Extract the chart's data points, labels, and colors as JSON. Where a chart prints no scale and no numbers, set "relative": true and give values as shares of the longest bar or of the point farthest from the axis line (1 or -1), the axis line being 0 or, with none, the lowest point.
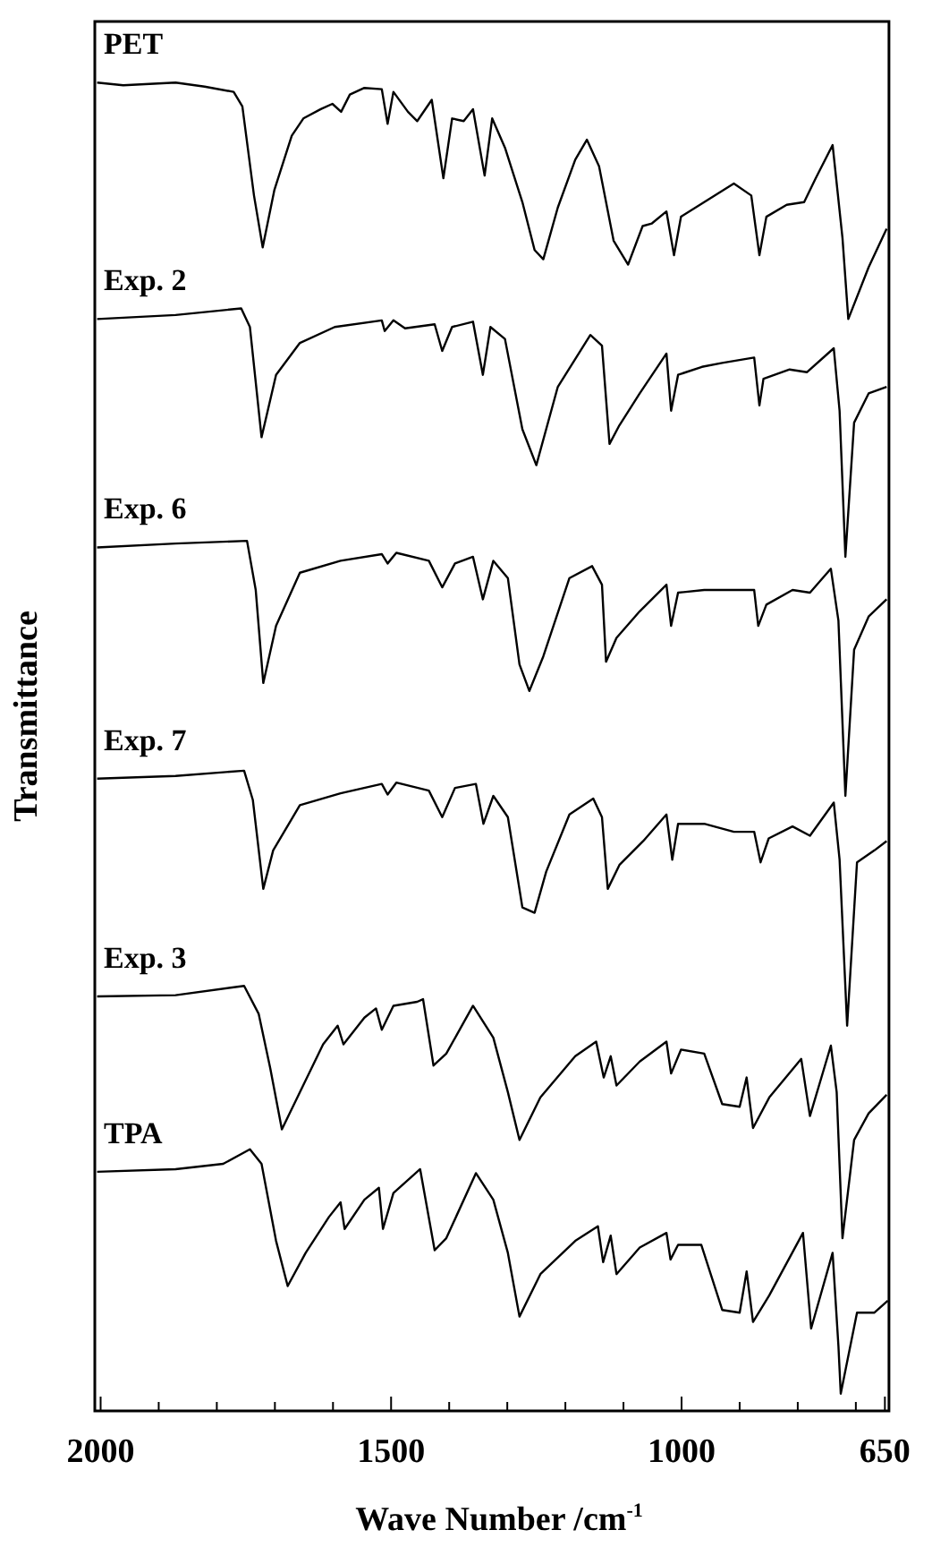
{
  "chart_data": {
    "type": "line",
    "xlabel": "Wave Number /cm$^{-1}$",
    "ylabel": "Transmittance",
    "relative": true,
    "tick_labels": "x",
    "marker": "none",
    "line_style": "solid",
    "xlim": [
      2010,
      643
    ],
    "xticks": [
      2000,
      {
        "value": 1900,
        "label": null
      },
      {
        "value": 1800,
        "label": null
      },
      {
        "value": 1700,
        "label": null
      },
      {
        "value": 1600,
        "label": null
      },
      1500,
      {
        "value": 1400,
        "label": null
      },
      {
        "value": 1300,
        "label": null
      },
      {
        "value": 1200,
        "label": null
      },
      {
        "value": 1100,
        "label": null
      },
      1000,
      {
        "value": 900,
        "label": null
      },
      {
        "value": 800,
        "label": null
      },
      {
        "value": 700,
        "label": null
      },
      650
    ],
    "series": [
      {
        "name": "PET",
        "color": "#000000",
        "x": [
          2006,
          1961,
          1871,
          1821,
          1771,
          1756,
          1736,
          1721,
          1701,
          1671,
          1651,
          1621,
          1601,
          1586,
          1571,
          1546,
          1516,
          1506,
          1496,
          1471,
          1455,
          1430,
          1410,
          1395,
          1375,
          1359,
          1339,
          1326,
          1304,
          1274,
          1253,
          1238,
          1213,
          1183,
          1163,
          1142,
          1117,
          1092,
          1067,
          1051,
          1026,
          1013,
          1001,
          961,
          910,
          880,
          866,
          854,
          819,
          789,
          769,
          740,
          723,
          713,
          678,
          647
        ],
        "values": [
          1.0,
          0.998,
          1.0,
          0.997,
          0.993,
          0.982,
          0.915,
          0.876,
          0.919,
          0.96,
          0.973,
          0.98,
          0.984,
          0.978,
          0.991,
          0.996,
          0.995,
          0.969,
          0.993,
          0.978,
          0.971,
          0.987,
          0.928,
          0.973,
          0.971,
          0.98,
          0.93,
          0.973,
          0.951,
          0.91,
          0.874,
          0.867,
          0.906,
          0.942,
          0.957,
          0.937,
          0.881,
          0.863,
          0.892,
          0.894,
          0.903,
          0.87,
          0.899,
          0.91,
          0.924,
          0.915,
          0.87,
          0.899,
          0.908,
          0.91,
          0.928,
          0.953,
          0.883,
          0.822,
          0.861,
          0.89
        ]
      },
      {
        "name": "Exp. 2",
        "color": "#000000",
        "x": [
          2006,
          1871,
          1758,
          1743,
          1723,
          1698,
          1657,
          1597,
          1516,
          1511,
          1496,
          1476,
          1425,
          1412,
          1395,
          1359,
          1342,
          1329,
          1304,
          1274,
          1250,
          1213,
          1157,
          1137,
          1124,
          1107,
          1072,
          1026,
          1018,
          1006,
          965,
          930,
          875,
          866,
          859,
          814,
          784,
          738,
          728,
          718,
          703,
          678,
          647
        ],
        "values": [
          0.822,
          0.825,
          0.83,
          0.816,
          0.733,
          0.78,
          0.804,
          0.816,
          0.821,
          0.813,
          0.821,
          0.815,
          0.818,
          0.798,
          0.816,
          0.82,
          0.78,
          0.816,
          0.807,
          0.739,
          0.712,
          0.771,
          0.81,
          0.802,
          0.728,
          0.742,
          0.766,
          0.796,
          0.753,
          0.78,
          0.786,
          0.789,
          0.793,
          0.757,
          0.777,
          0.784,
          0.782,
          0.8,
          0.753,
          0.643,
          0.744,
          0.766,
          0.771
        ]
      },
      {
        "name": "Exp. 6",
        "color": "#000000",
        "x": [
          2006,
          1871,
          1748,
          1733,
          1720,
          1698,
          1657,
          1587,
          1516,
          1506,
          1491,
          1435,
          1412,
          1390,
          1359,
          1342,
          1324,
          1299,
          1279,
          1262,
          1238,
          1193,
          1154,
          1137,
          1130,
          1112,
          1072,
          1026,
          1018,
          1006,
          961,
          910,
          875,
          868,
          854,
          809,
          779,
          743,
          730,
          718,
          703,
          678,
          647
        ],
        "values": [
          0.65,
          0.653,
          0.655,
          0.618,
          0.548,
          0.591,
          0.631,
          0.64,
          0.645,
          0.638,
          0.646,
          0.64,
          0.62,
          0.638,
          0.643,
          0.611,
          0.64,
          0.627,
          0.562,
          0.542,
          0.568,
          0.627,
          0.636,
          0.622,
          0.564,
          0.582,
          0.602,
          0.622,
          0.591,
          0.616,
          0.618,
          0.618,
          0.618,
          0.591,
          0.607,
          0.618,
          0.616,
          0.634,
          0.595,
          0.463,
          0.573,
          0.598,
          0.611
        ]
      },
      {
        "name": "Exp. 7",
        "color": "#000000",
        "x": [
          2006,
          1871,
          1753,
          1738,
          1720,
          1703,
          1657,
          1587,
          1516,
          1506,
          1491,
          1435,
          1412,
          1390,
          1354,
          1341,
          1324,
          1299,
          1274,
          1253,
          1233,
          1193,
          1152,
          1137,
          1127,
          1107,
          1066,
          1026,
          1016,
          1006,
          961,
          910,
          875,
          864,
          850,
          809,
          779,
          738,
          728,
          715,
          698,
          668,
          647
        ],
        "values": [
          0.476,
          0.478,
          0.482,
          0.46,
          0.393,
          0.422,
          0.456,
          0.465,
          0.472,
          0.464,
          0.473,
          0.467,
          0.447,
          0.469,
          0.472,
          0.442,
          0.463,
          0.447,
          0.379,
          0.375,
          0.406,
          0.449,
          0.461,
          0.447,
          0.393,
          0.411,
          0.429,
          0.449,
          0.415,
          0.442,
          0.442,
          0.436,
          0.436,
          0.413,
          0.431,
          0.44,
          0.433,
          0.458,
          0.415,
          0.29,
          0.413,
          0.422,
          0.429
        ]
      },
      {
        "name": "Exp. 3",
        "color": "#000000",
        "x": [
          2006,
          1871,
          1753,
          1728,
          1708,
          1688,
          1657,
          1617,
          1592,
          1582,
          1546,
          1526,
          1516,
          1496,
          1455,
          1445,
          1427,
          1405,
          1359,
          1324,
          1299,
          1279,
          1243,
          1183,
          1147,
          1134,
          1122,
          1112,
          1072,
          1026,
          1018,
          1001,
          961,
          930,
          900,
          888,
          877,
          849,
          794,
          779,
          743,
          733,
          723,
          703,
          678,
          647
        ],
        "values": [
          0.312,
          0.313,
          0.32,
          0.299,
          0.258,
          0.212,
          0.24,
          0.276,
          0.29,
          0.276,
          0.296,
          0.303,
          0.287,
          0.305,
          0.308,
          0.31,
          0.26,
          0.269,
          0.305,
          0.281,
          0.24,
          0.204,
          0.236,
          0.267,
          0.278,
          0.251,
          0.267,
          0.245,
          0.263,
          0.278,
          0.254,
          0.272,
          0.269,
          0.231,
          0.229,
          0.251,
          0.213,
          0.236,
          0.265,
          0.222,
          0.275,
          0.24,
          0.13,
          0.204,
          0.224,
          0.238
        ]
      },
      {
        "name": "TPA",
        "color": "#000000",
        "x": [
          2006,
          1871,
          1789,
          1743,
          1723,
          1698,
          1678,
          1647,
          1607,
          1587,
          1580,
          1546,
          1521,
          1514,
          1496,
          1450,
          1425,
          1405,
          1354,
          1324,
          1299,
          1279,
          1243,
          1183,
          1144,
          1135,
          1122,
          1112,
          1072,
          1026,
          1019,
          1006,
          966,
          930,
          900,
          888,
          877,
          849,
          791,
          777,
          740,
          730,
          726,
          698,
          668,
          645
        ],
        "values": [
          0.18,
          0.182,
          0.186,
          0.197,
          0.186,
          0.128,
          0.094,
          0.119,
          0.146,
          0.157,
          0.137,
          0.159,
          0.168,
          0.137,
          0.164,
          0.182,
          0.121,
          0.13,
          0.179,
          0.159,
          0.119,
          0.071,
          0.103,
          0.128,
          0.139,
          0.112,
          0.132,
          0.103,
          0.123,
          0.134,
          0.114,
          0.125,
          0.125,
          0.076,
          0.074,
          0.105,
          0.067,
          0.087,
          0.134,
          0.062,
          0.119,
          0.049,
          0.013,
          0.074,
          0.074,
          0.083
        ]
      }
    ]
  }
}
